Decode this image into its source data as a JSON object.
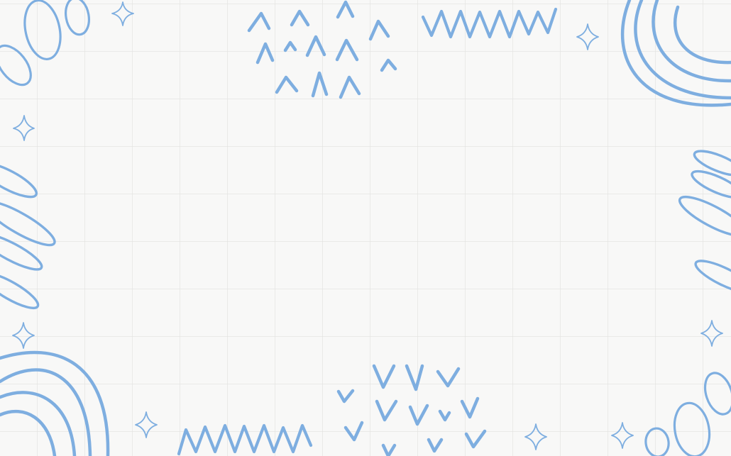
{
  "background": {
    "paper_color": "#f8f8f7",
    "grid_color": "#e2e2e0",
    "grid": true
  },
  "decoration": {
    "accent_color": "#7eaee0",
    "motifs": [
      "oval-loops",
      "sparkle",
      "caret-marks",
      "zigzag",
      "rainbow-arcs",
      "slanted-loops",
      "v-marks"
    ]
  }
}
